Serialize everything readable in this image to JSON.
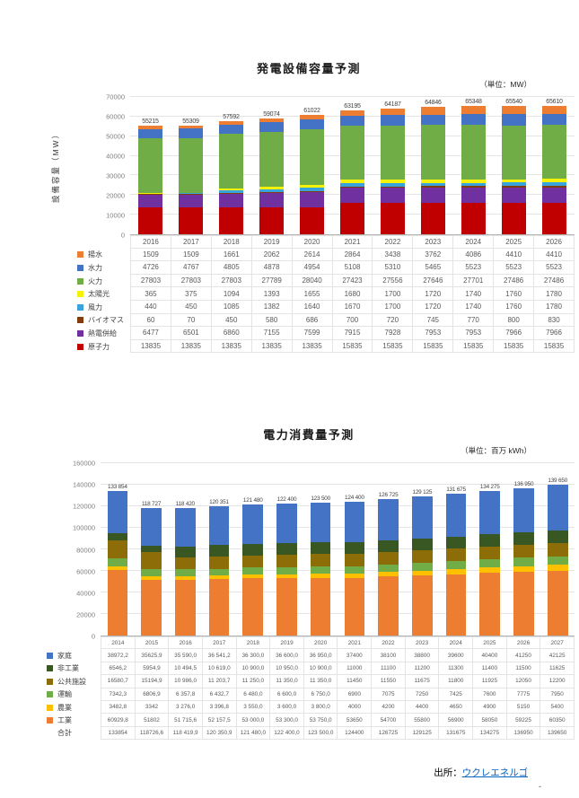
{
  "page": {
    "source_prefix": "出所：",
    "source_link": "ウクレエネルゴ",
    "footer_dash": "-"
  },
  "chart_data": [
    {
      "type": "bar",
      "stacked": true,
      "title": "発電設備容量予測",
      "unit_label": "（単位：MW）",
      "ylabel": "設備容量（MW）",
      "ylim": [
        0,
        70000
      ],
      "ytick": 10000,
      "grid": true,
      "legend_position": "left-table",
      "categories": [
        "2016",
        "2017",
        "2018",
        "2019",
        "2020",
        "2021",
        "2022",
        "2023",
        "2024",
        "2025",
        "2026"
      ],
      "totals": [
        "55215",
        "55309",
        "57592",
        "59074",
        "61022",
        "63195",
        "64187",
        "64846",
        "65348",
        "65540",
        "65610"
      ],
      "series": [
        {
          "name": "揚水",
          "color": "#ED7D31",
          "values": [
            1509,
            1509,
            1661,
            2062,
            2614,
            2864,
            3438,
            3762,
            4086,
            4410,
            4410
          ]
        },
        {
          "name": "水力",
          "color": "#4472C4",
          "values": [
            4726,
            4767,
            4805,
            4878,
            4954,
            5108,
            5310,
            5465,
            5523,
            5523,
            5523
          ]
        },
        {
          "name": "火力",
          "color": "#70AD47",
          "values": [
            27803,
            27803,
            27803,
            27789,
            28040,
            27423,
            27556,
            27646,
            27701,
            27486,
            27486
          ]
        },
        {
          "name": "太陽光",
          "color": "#F5F20A",
          "values": [
            365,
            375,
            1094,
            1393,
            1655,
            1680,
            1700,
            1720,
            1740,
            1760,
            1780
          ]
        },
        {
          "name": "風力",
          "color": "#38A3DC",
          "values": [
            440,
            450,
            1085,
            1382,
            1640,
            1670,
            1700,
            1720,
            1740,
            1760,
            1780
          ]
        },
        {
          "name": "バイオマス",
          "color": "#843C0C",
          "values": [
            60,
            70,
            450,
            580,
            686,
            700,
            720,
            745,
            770,
            800,
            830
          ]
        },
        {
          "name": "熱電併給",
          "color": "#7030A0",
          "values": [
            6477,
            6501,
            6860,
            7155,
            7599,
            7915,
            7928,
            7953,
            7953,
            7966,
            7966
          ]
        },
        {
          "name": "原子力",
          "color": "#C00000",
          "values": [
            13835,
            13835,
            13835,
            13835,
            13835,
            15835,
            15835,
            15835,
            15835,
            15835,
            15835
          ]
        }
      ]
    },
    {
      "type": "bar",
      "stacked": true,
      "title": "電力消費量予測",
      "unit_label": "（単位：百万 kWh）",
      "ylabel": "",
      "ylim": [
        0,
        160000
      ],
      "ytick": 20000,
      "grid": true,
      "legend_position": "left-table",
      "categories": [
        "2014",
        "2015",
        "2016",
        "2017",
        "2018",
        "2019",
        "2020",
        "2021",
        "2022",
        "2023",
        "2024",
        "2025",
        "2026",
        "2027"
      ],
      "totals": [
        "133 854",
        "118 727",
        "118 420",
        "120 351",
        "121 480",
        "122 400",
        "123 500",
        "124 400",
        "126 725",
        "129 125",
        "131 675",
        "134 275",
        "136 950",
        "139 650"
      ],
      "series": [
        {
          "name": "家庭",
          "color": "#4472C4",
          "values": [
            38972.2,
            35625.9,
            35590,
            36541.2,
            36300,
            36600,
            36950,
            37400,
            38100,
            38800,
            39600,
            40400,
            41250,
            42125
          ],
          "cells": [
            "38972,2",
            "35625,9",
            "35 590,0",
            "36 541,2",
            "36 300,0",
            "36 600,0",
            "36 950,0",
            "37400",
            "38100",
            "38800",
            "39600",
            "40400",
            "41250",
            "42125"
          ]
        },
        {
          "name": "非工業",
          "color": "#385723",
          "values": [
            6546.2,
            5954.9,
            10494.5,
            10619,
            10900,
            10950,
            10900,
            11000,
            11100,
            11200,
            11300,
            11400,
            11500,
            11625
          ],
          "cells": [
            "6546,2",
            "5954,9",
            "10 494,5",
            "10 619,0",
            "10 900,0",
            "10 950,0",
            "10 900,0",
            "11000",
            "11100",
            "11200",
            "11300",
            "11400",
            "11500",
            "11625"
          ]
        },
        {
          "name": "公共施設",
          "color": "#8C6D07",
          "values": [
            16580.7,
            15194.9,
            10986,
            11203.7,
            11250,
            11350,
            11350,
            11450,
            11550,
            11675,
            11800,
            11925,
            12050,
            12200
          ],
          "cells": [
            "16580,7",
            "15194,9",
            "10 986,0",
            "11 203,7",
            "11 250,0",
            "11 350,0",
            "11 350,0",
            "11450",
            "11550",
            "11675",
            "11800",
            "11925",
            "12050",
            "12200"
          ]
        },
        {
          "name": "運輸",
          "color": "#70AD47",
          "values": [
            7342.3,
            6806.9,
            6357.8,
            6432.7,
            6480,
            6600,
            6750,
            6900,
            7075,
            7250,
            7425,
            7600,
            7775,
            7950
          ],
          "cells": [
            "7342,3",
            "6806,9",
            "6 357,8",
            "6 432,7",
            "6 480,0",
            "6 600,0",
            "6 750,0",
            "6900",
            "7075",
            "7250",
            "7425",
            "7600",
            "7775",
            "7950"
          ]
        },
        {
          "name": "農業",
          "color": "#FFC000",
          "values": [
            3482.8,
            3342,
            3276,
            3396.8,
            3550,
            3600,
            3800,
            4000,
            4200,
            4400,
            4650,
            4900,
            5150,
            5400
          ],
          "cells": [
            "3482,8",
            "3342",
            "3 276,0",
            "3 396,8",
            "3 550,0",
            "3 600,0",
            "3 800,0",
            "4000",
            "4200",
            "4400",
            "4650",
            "4900",
            "5150",
            "5400"
          ]
        },
        {
          "name": "工業",
          "color": "#ED7D31",
          "values": [
            60929.8,
            51802,
            51715.6,
            52157.5,
            53000,
            53300,
            53750,
            53650,
            54700,
            55800,
            56900,
            58050,
            59225,
            60350
          ],
          "cells": [
            "60929,8",
            "51802",
            "51 715,6",
            "52 157,5",
            "53 000,0",
            "53 300,0",
            "53 750,0",
            "53650",
            "54700",
            "55800",
            "56900",
            "58050",
            "59225",
            "60350"
          ]
        }
      ],
      "total_row": {
        "label": "合計",
        "cells": [
          "133854",
          "118726,6",
          "118 419,9",
          "120 350,9",
          "121 480,0",
          "122 400,0",
          "123 500,0",
          "124400",
          "126725",
          "129125",
          "131675",
          "134275",
          "136950",
          "139650"
        ]
      }
    }
  ]
}
